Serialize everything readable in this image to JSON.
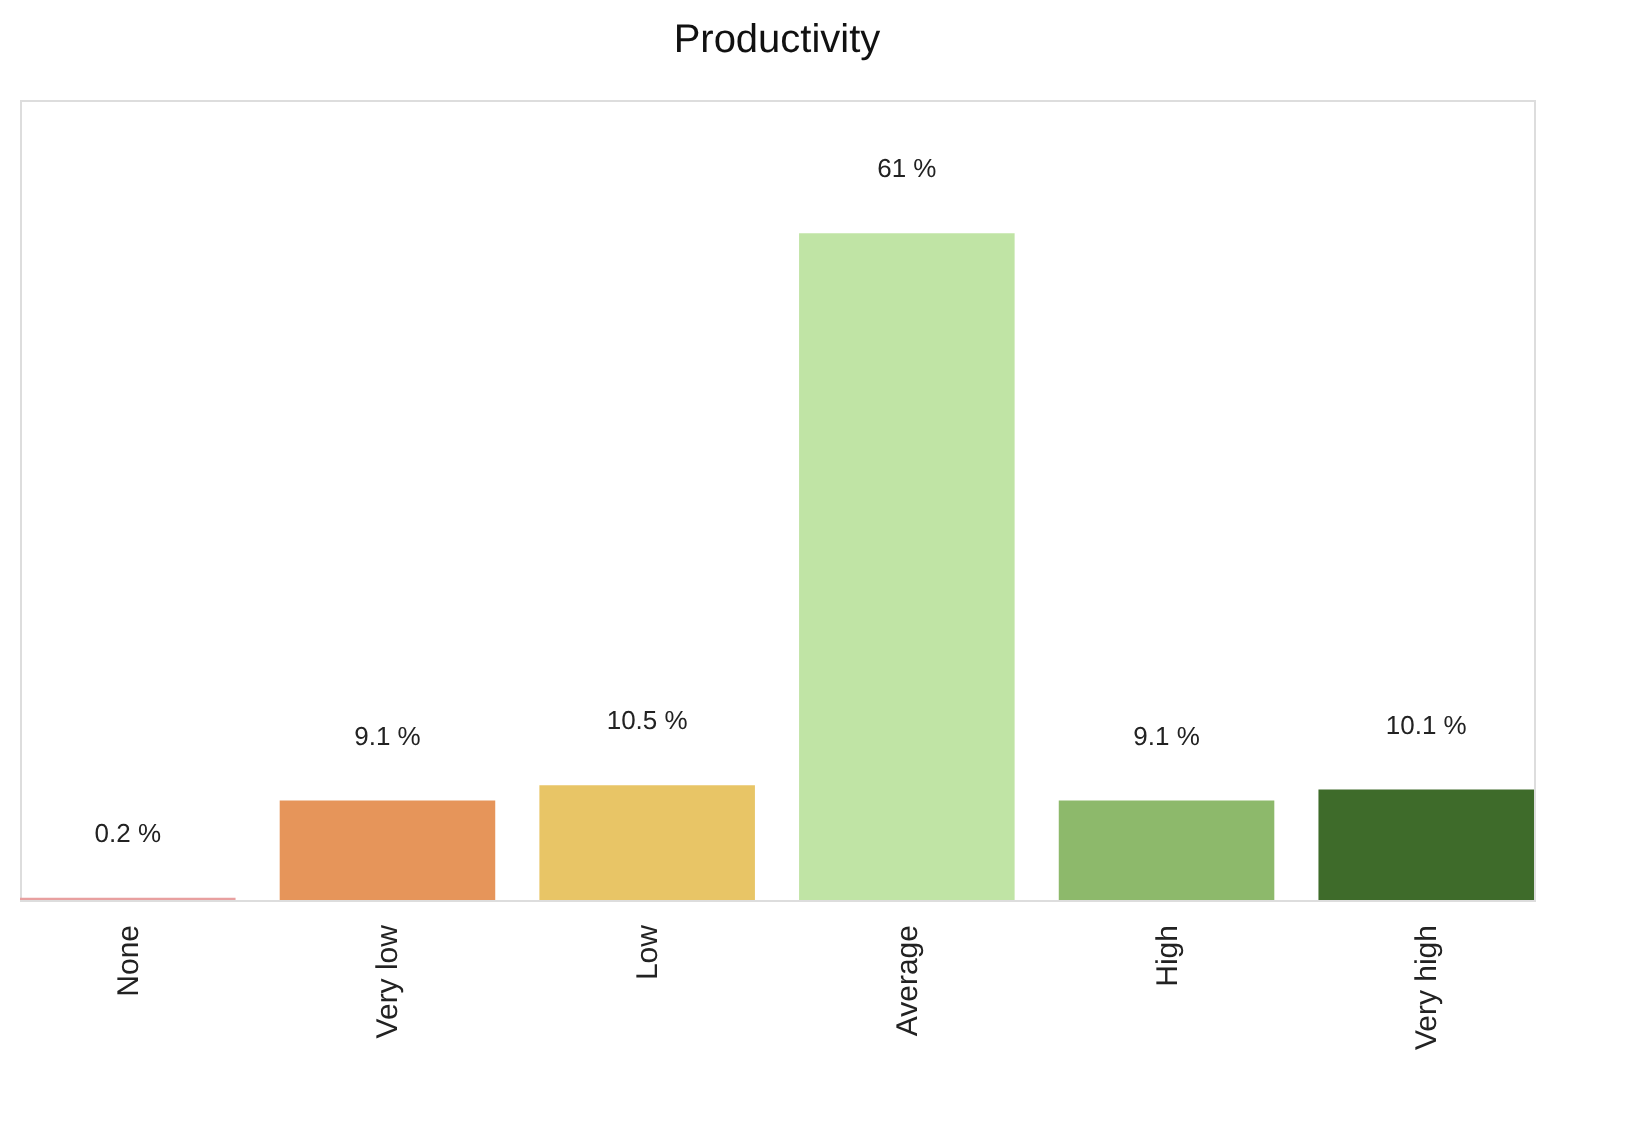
{
  "chart_data": {
    "type": "bar",
    "title": "Productivity",
    "categories": [
      "None",
      "Very low",
      "Low",
      "Average",
      "High",
      "Very high"
    ],
    "values": [
      0.2,
      9.1,
      10.5,
      61,
      9.1,
      10.1
    ],
    "colors": [
      "#e8a0a0",
      "#e6955a",
      "#e8c566",
      "#c0e4a5",
      "#8db96b",
      "#3e6b2a"
    ],
    "value_labels": [
      "0.2 %",
      "9.1 %",
      "10.5 %",
      "61 %",
      "9.1 %",
      "10.1 %"
    ],
    "grid": false,
    "legend": false
  }
}
